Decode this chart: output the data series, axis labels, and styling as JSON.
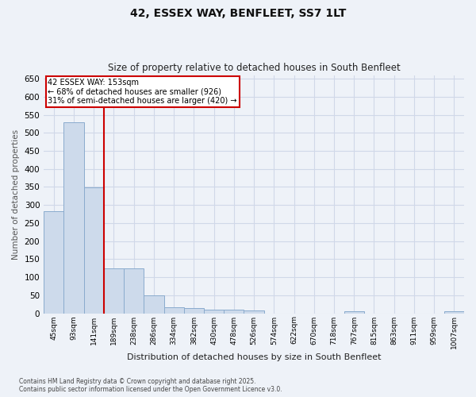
{
  "title_line1": "42, ESSEX WAY, BENFLEET, SS7 1LT",
  "title_line2": "Size of property relative to detached houses in South Benfleet",
  "xlabel": "Distribution of detached houses by size in South Benfleet",
  "ylabel": "Number of detached properties",
  "categories": [
    "45sqm",
    "93sqm",
    "141sqm",
    "189sqm",
    "238sqm",
    "286sqm",
    "334sqm",
    "382sqm",
    "430sqm",
    "478sqm",
    "526sqm",
    "574sqm",
    "622sqm",
    "670sqm",
    "718sqm",
    "767sqm",
    "815sqm",
    "863sqm",
    "911sqm",
    "959sqm",
    "1007sqm"
  ],
  "bar_values": [
    283,
    530,
    348,
    125,
    125,
    50,
    17,
    15,
    10,
    10,
    7,
    0,
    0,
    0,
    0,
    5,
    0,
    0,
    0,
    0,
    5
  ],
  "bar_color": "#cddaeb",
  "bar_edgecolor": "#8aabcd",
  "vline_x_index": 2,
  "vline_color": "#cc0000",
  "ylim": [
    0,
    660
  ],
  "yticks": [
    0,
    50,
    100,
    150,
    200,
    250,
    300,
    350,
    400,
    450,
    500,
    550,
    600,
    650
  ],
  "annotation_title": "42 ESSEX WAY: 153sqm",
  "annotation_line1": "← 68% of detached houses are smaller (926)",
  "annotation_line2": "31% of semi-detached houses are larger (420) →",
  "annotation_box_color": "#cc0000",
  "footnote_line1": "Contains HM Land Registry data © Crown copyright and database right 2025.",
  "footnote_line2": "Contains public sector information licensed under the Open Government Licence v3.0.",
  "bg_color": "#eef2f8",
  "plot_bg_color": "#eef2f8",
  "grid_color": "#d0d8e8"
}
